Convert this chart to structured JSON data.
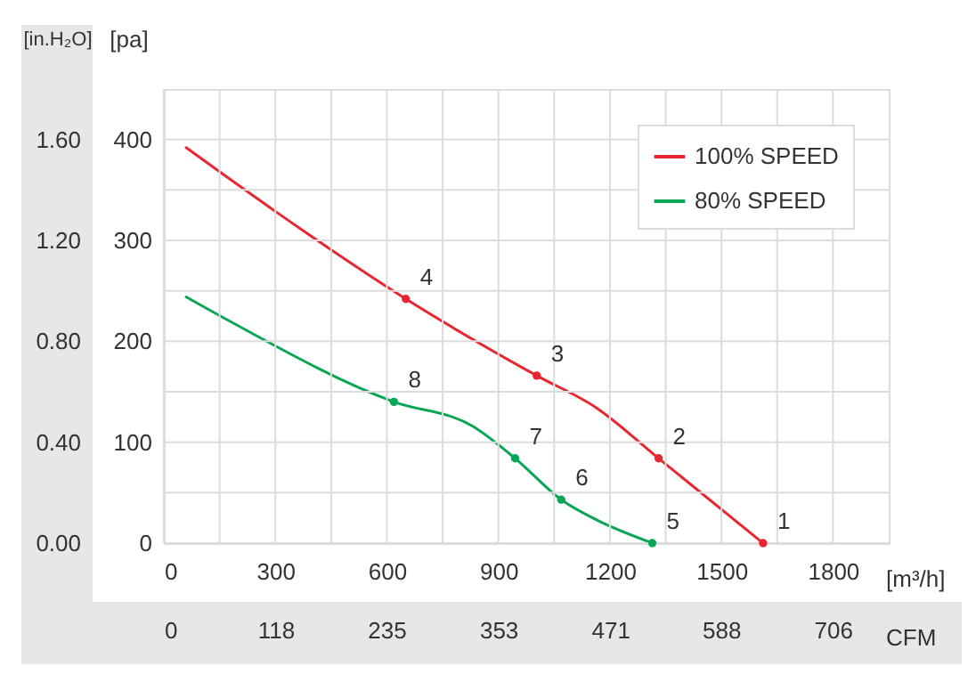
{
  "chart_data": {
    "type": "line",
    "xlabel": "[m³/h]",
    "ylabel": "[pa]",
    "y2label": "[in.H₂O]",
    "x2label": "CFM",
    "xlim": [
      0,
      1950
    ],
    "xticks": [
      0,
      {
        "value": 150,
        "label": null
      },
      300,
      {
        "value": 450,
        "label": null
      },
      600,
      {
        "value": 750,
        "label": null
      },
      900,
      {
        "value": 1050,
        "label": null
      },
      1200,
      {
        "value": 1350,
        "label": null
      },
      1500,
      {
        "value": 1650,
        "label": null
      },
      1800
    ],
    "ylim": [
      0,
      450
    ],
    "yticks": [
      0,
      {
        "value": 50,
        "label": null
      },
      100,
      {
        "value": 150,
        "label": null
      },
      200,
      {
        "value": 250,
        "label": null
      },
      300,
      {
        "value": 350,
        "label": null
      },
      400
    ],
    "y2lim": [
      0,
      1.8
    ],
    "y2ticks": [
      {
        "value": 0,
        "label": "0.00"
      },
      {
        "value": 0.4,
        "label": "0.40"
      },
      {
        "value": 0.8,
        "label": "0.80"
      },
      {
        "value": 1.2,
        "label": "1.20"
      },
      {
        "value": 1.6,
        "label": "1.60"
      }
    ],
    "x2lim": [
      0,
      765
    ],
    "x2ticks": [
      0,
      118,
      235,
      353,
      471,
      588,
      706
    ],
    "grid": true,
    "legend": "top right",
    "series": [
      {
        "name": "100% SPEED",
        "color": "#e8262f",
        "x": [
          60,
          299,
          651,
          1003,
          1164,
          1331,
          1612
        ],
        "values": [
          392,
          329,
          242,
          166,
          134,
          84,
          0
        ]
      },
      {
        "name": "80% SPEED",
        "color": "#0aa655",
        "x": [
          60,
          172,
          619,
          830,
          945,
          1069,
          1164,
          1314
        ],
        "values": [
          244,
          221,
          140,
          116,
          84,
          43,
          23,
          0
        ]
      },
      {
        "type": "scatter",
        "marker": "circle",
        "color": "#e8262f",
        "x": [
          651,
          1003,
          1331,
          1612
        ],
        "values": [
          242,
          166,
          84,
          0
        ]
      },
      {
        "type": "scatter",
        "marker": "circle",
        "color": "#0aa655",
        "x": [
          619,
          945,
          1069,
          1314
        ],
        "values": [
          140,
          84,
          43,
          0
        ]
      }
    ],
    "annotations": [
      {
        "text": "1",
        "x": 1612,
        "y": 0
      },
      {
        "text": "2",
        "x": 1331,
        "y": 84
      },
      {
        "text": "3",
        "x": 1003,
        "y": 166
      },
      {
        "text": "4",
        "x": 651,
        "y": 242
      },
      {
        "text": "5",
        "x": 1314,
        "y": 0
      },
      {
        "text": "6",
        "x": 1069,
        "y": 43
      },
      {
        "text": "7",
        "x": 945,
        "y": 84
      },
      {
        "text": "8",
        "x": 619,
        "y": 140
      }
    ]
  }
}
